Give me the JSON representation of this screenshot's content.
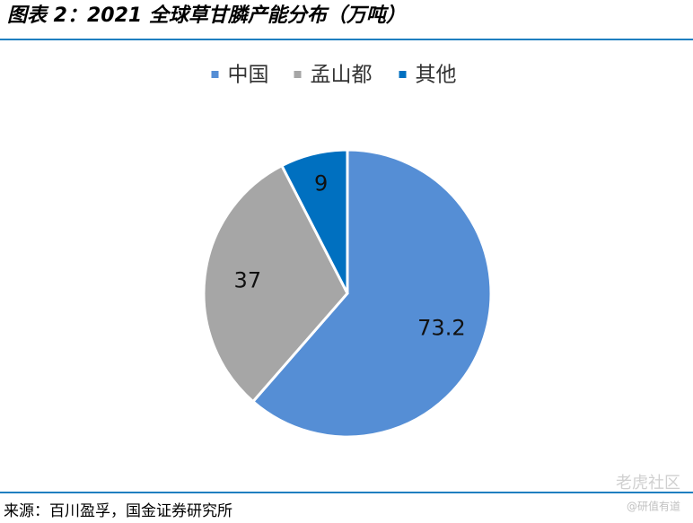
{
  "chart_data": {
    "type": "pie",
    "title": "图表 2：2021 全球草甘膦产能分布（万吨）",
    "categories": [
      "中国",
      "孟山都",
      "其他"
    ],
    "values": [
      73.2,
      37,
      9
    ],
    "colors": [
      "#558ed5",
      "#a6a6a6",
      "#0070c0"
    ],
    "legend": "top",
    "source": "来源：百川盈孚，国金证券研究所",
    "watermark": "老虎社区",
    "watermark_sub": "@研值有道"
  }
}
